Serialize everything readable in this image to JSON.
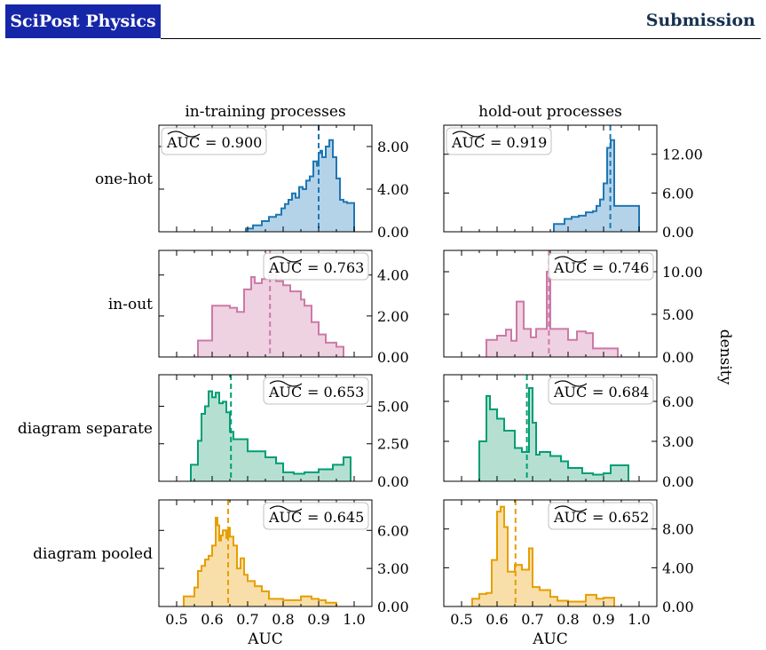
{
  "header": {
    "journal_name": "SciPost Physics",
    "section": "Submission"
  },
  "figure": {
    "column_titles": [
      "in-training processes",
      "hold-out processes"
    ],
    "row_labels": [
      "one-hot",
      "in-out",
      "diagram separate",
      "diagram pooled"
    ],
    "xlabel": "AUC",
    "ylabel": "density",
    "x_ticks": [
      0.5,
      0.6,
      0.7,
      0.8,
      0.9,
      1.0
    ],
    "x_tick_labels": [
      "0.5",
      "0.6",
      "0.7",
      "0.8",
      "0.9",
      "1.0"
    ],
    "auc_symbol": "AUC"
  },
  "chart_data": [
    {
      "type": "area",
      "row": "one-hot",
      "column": "in-training processes",
      "color": "#1f77b4",
      "fill": "#a8cbe4",
      "xlim": [
        0.45,
        1.05
      ],
      "ylim": [
        0,
        10
      ],
      "yticks": [
        0,
        4,
        8
      ],
      "ytick_labels": [
        "0.00",
        "4.00",
        "8.00"
      ],
      "auc_label": "0.900",
      "median": 0.9,
      "label_position": "top-left",
      "x": [
        0.695,
        0.715,
        0.74,
        0.76,
        0.78,
        0.795,
        0.805,
        0.815,
        0.825,
        0.835,
        0.845,
        0.855,
        0.865,
        0.875,
        0.885,
        0.895,
        0.9,
        0.905,
        0.91,
        0.92,
        0.93,
        0.94,
        0.95,
        0.96,
        0.97,
        0.98,
        1.0
      ],
      "y": [
        0.3,
        0.6,
        1.0,
        1.4,
        1.6,
        2.2,
        2.6,
        3.0,
        3.6,
        3.2,
        4.2,
        4.0,
        4.8,
        5.2,
        6.6,
        6.2,
        7.4,
        7.6,
        7.0,
        8.0,
        8.6,
        7.0,
        5.0,
        3.0,
        2.8,
        2.7,
        0
      ]
    },
    {
      "type": "area",
      "row": "one-hot",
      "column": "hold-out processes",
      "color": "#1f77b4",
      "fill": "#a8cbe4",
      "xlim": [
        0.45,
        1.05
      ],
      "ylim": [
        0,
        16.5
      ],
      "yticks": [
        0,
        6,
        12
      ],
      "ytick_labels": [
        "0.00",
        "6.00",
        "12.00"
      ],
      "auc_label": "0.919",
      "median": 0.919,
      "label_position": "top-left",
      "x": [
        0.76,
        0.79,
        0.81,
        0.83,
        0.85,
        0.87,
        0.88,
        0.89,
        0.9,
        0.91,
        0.92,
        0.93,
        1.0
      ],
      "y": [
        1.2,
        2.0,
        2.3,
        2.5,
        3.0,
        3.2,
        4.0,
        5.0,
        7.5,
        13.0,
        14.2,
        4.0,
        0
      ]
    },
    {
      "type": "area",
      "row": "in-out",
      "column": "in-training processes",
      "color": "#cc79a7",
      "fill": "#eccadc",
      "xlim": [
        0.45,
        1.05
      ],
      "ylim": [
        0,
        5.2
      ],
      "yticks": [
        0,
        2,
        4
      ],
      "ytick_labels": [
        "0.00",
        "2.00",
        "4.00"
      ],
      "auc_label": "0.763",
      "median": 0.763,
      "label_position": "top-right",
      "x": [
        0.56,
        0.6,
        0.65,
        0.67,
        0.69,
        0.71,
        0.72,
        0.74,
        0.76,
        0.78,
        0.8,
        0.82,
        0.85,
        0.86,
        0.88,
        0.9,
        0.92,
        0.95,
        0.97
      ],
      "y": [
        0.8,
        2.5,
        2.4,
        2.2,
        3.3,
        3.9,
        3.6,
        3.8,
        4.0,
        3.7,
        3.5,
        3.2,
        2.8,
        2.5,
        1.7,
        1.1,
        0.7,
        0.5,
        0
      ]
    },
    {
      "type": "area",
      "row": "in-out",
      "column": "hold-out processes",
      "color": "#cc79a7",
      "fill": "#eccadc",
      "xlim": [
        0.45,
        1.05
      ],
      "ylim": [
        0,
        12.5
      ],
      "yticks": [
        0,
        5,
        10
      ],
      "ytick_labels": [
        "0.00",
        "5.00",
        "10.00"
      ],
      "auc_label": "0.746",
      "median": 0.746,
      "label_position": "top-right",
      "x": [
        0.57,
        0.6,
        0.625,
        0.64,
        0.655,
        0.675,
        0.695,
        0.71,
        0.74,
        0.75,
        0.775,
        0.8,
        0.825,
        0.85,
        0.87,
        0.94
      ],
      "y": [
        2.0,
        2.5,
        3.2,
        1.9,
        6.5,
        3.3,
        2.3,
        3.3,
        10.0,
        3.3,
        3.3,
        2.0,
        3.0,
        2.8,
        1.0,
        0
      ]
    },
    {
      "type": "area",
      "row": "diagram separate",
      "column": "in-training processes",
      "color": "#009e73",
      "fill": "#a8dbc9",
      "xlim": [
        0.45,
        1.05
      ],
      "ylim": [
        0,
        7.1
      ],
      "yticks": [
        0,
        2.5,
        5
      ],
      "ytick_labels": [
        "0.00",
        "2.50",
        "5.00"
      ],
      "auc_label": "0.653",
      "median": 0.653,
      "label_position": "top-right",
      "x": [
        0.54,
        0.56,
        0.57,
        0.58,
        0.59,
        0.6,
        0.61,
        0.62,
        0.63,
        0.64,
        0.65,
        0.66,
        0.7,
        0.75,
        0.78,
        0.8,
        0.83,
        0.86,
        0.9,
        0.94,
        0.97,
        0.99
      ],
      "y": [
        1.1,
        2.7,
        4.5,
        5.0,
        6.0,
        5.6,
        5.9,
        5.2,
        5.3,
        4.6,
        3.3,
        2.8,
        2.0,
        1.6,
        1.2,
        0.6,
        0.5,
        0.6,
        0.8,
        1.1,
        1.6,
        0
      ]
    },
    {
      "type": "area",
      "row": "diagram separate",
      "column": "hold-out processes",
      "color": "#009e73",
      "fill": "#a8dbc9",
      "xlim": [
        0.45,
        1.05
      ],
      "ylim": [
        0,
        8.0
      ],
      "yticks": [
        0,
        3,
        6
      ],
      "ytick_labels": [
        "0.00",
        "3.00",
        "6.00"
      ],
      "auc_label": "0.684",
      "median": 0.684,
      "label_position": "top-right",
      "x": [
        0.55,
        0.57,
        0.58,
        0.6,
        0.62,
        0.65,
        0.67,
        0.69,
        0.7,
        0.71,
        0.72,
        0.75,
        0.78,
        0.8,
        0.84,
        0.87,
        0.9,
        0.92,
        0.97
      ],
      "y": [
        3.0,
        6.4,
        5.4,
        4.7,
        3.8,
        2.5,
        2.2,
        7.0,
        4.4,
        2.0,
        2.2,
        1.9,
        1.5,
        1.0,
        0.6,
        0.5,
        0.6,
        1.2,
        0
      ]
    },
    {
      "type": "area",
      "row": "diagram pooled",
      "column": "in-training processes",
      "color": "#e69f00",
      "fill": "#f7d89a",
      "xlim": [
        0.45,
        1.05
      ],
      "ylim": [
        0,
        8.4
      ],
      "yticks": [
        0,
        3,
        6
      ],
      "ytick_labels": [
        "0.00",
        "3.00",
        "6.00"
      ],
      "auc_label": "0.645",
      "median": 0.645,
      "label_position": "top-right",
      "x": [
        0.52,
        0.55,
        0.56,
        0.57,
        0.58,
        0.59,
        0.6,
        0.61,
        0.615,
        0.62,
        0.625,
        0.63,
        0.64,
        0.645,
        0.65,
        0.66,
        0.67,
        0.68,
        0.69,
        0.7,
        0.72,
        0.74,
        0.76,
        0.8,
        0.85,
        0.88,
        0.9,
        0.92,
        0.95
      ],
      "y": [
        0.8,
        1.5,
        2.8,
        3.2,
        3.7,
        4.0,
        4.8,
        7.0,
        6.4,
        5.2,
        5.6,
        6.0,
        5.4,
        6.2,
        5.5,
        4.8,
        3.0,
        3.8,
        2.5,
        2.0,
        1.6,
        1.2,
        0.6,
        0.5,
        0.8,
        0.6,
        0.5,
        0.3,
        0
      ]
    },
    {
      "type": "area",
      "row": "diagram pooled",
      "column": "hold-out processes",
      "color": "#e69f00",
      "fill": "#f7d89a",
      "xlim": [
        0.45,
        1.05
      ],
      "ylim": [
        0,
        11.0
      ],
      "yticks": [
        0,
        4,
        8
      ],
      "ytick_labels": [
        "0.00",
        "4.00",
        "8.00"
      ],
      "auc_label": "0.652",
      "median": 0.652,
      "label_position": "top-right",
      "x": [
        0.53,
        0.55,
        0.57,
        0.585,
        0.6,
        0.61,
        0.62,
        0.63,
        0.65,
        0.67,
        0.69,
        0.7,
        0.72,
        0.75,
        0.77,
        0.8,
        0.85,
        0.88,
        0.9,
        0.93
      ],
      "y": [
        0.8,
        1.3,
        1.4,
        4.8,
        9.8,
        10.3,
        8.2,
        3.6,
        4.3,
        3.8,
        6.0,
        2.0,
        1.7,
        1.0,
        0.6,
        0.5,
        1.2,
        0.8,
        0.9,
        0
      ]
    }
  ]
}
